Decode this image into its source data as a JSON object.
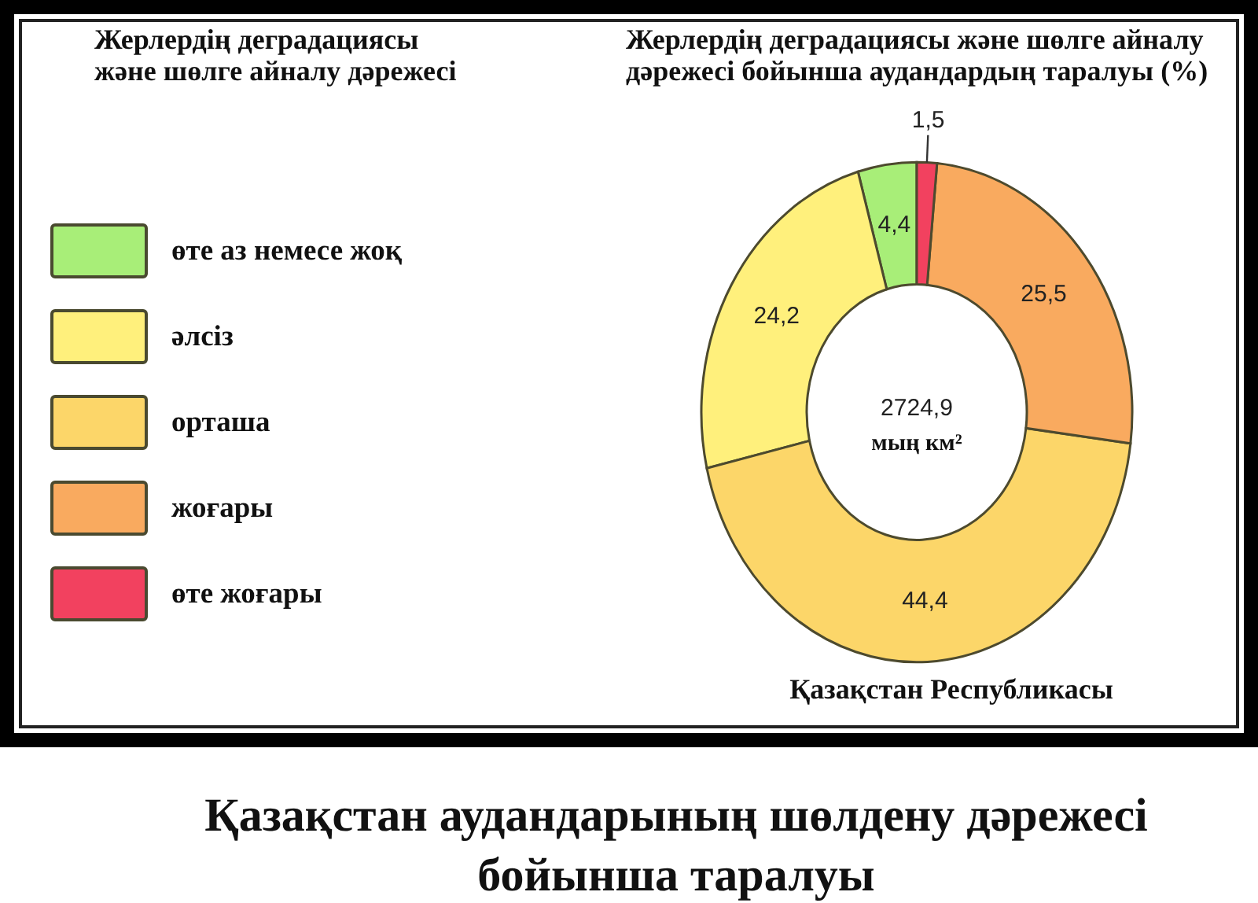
{
  "chart_data": {
    "type": "donut",
    "title": "Жерлердің деградациясы және шөлге айналу дәрежесі бойынша аудандардың таралуы (%)",
    "legend_title": "Жерлердің деградациясы және шөлге айналу дәрежесі",
    "categories": [
      "өте аз немесе жоқ",
      "әлсіз",
      "орташа",
      "жоғары",
      "өте жоғары"
    ],
    "values": [
      4.4,
      24.2,
      44.4,
      25.5,
      1.5
    ],
    "colors": [
      "#a8ee78",
      "#fff07c",
      "#fcd669",
      "#f9aa5f",
      "#f2415f"
    ],
    "value_labels": [
      "4,4",
      "24,2",
      "44,4",
      "25,5",
      "1,5"
    ],
    "legend": "left",
    "annotations": [
      "2724,9 мың км²",
      "Қазақстан Республикасы",
      "Қазақстан аудандарының шөлдену дәрежесі бойынша таралуы"
    ]
  }
}
